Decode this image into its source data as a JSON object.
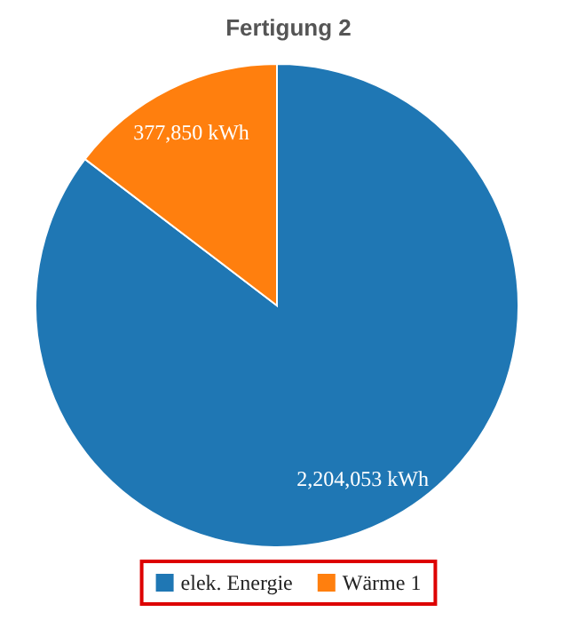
{
  "chart_data": {
    "type": "pie",
    "title": "Fertigung 2",
    "categories": [
      "elek. Energie",
      "Wärme 1"
    ],
    "values": [
      2204053,
      377850
    ],
    "colors": [
      "#1f77b4",
      "#ff7f0e"
    ],
    "value_labels": [
      "2,204,053 kWh",
      "377,850 kWh"
    ],
    "legend": "bottom"
  }
}
